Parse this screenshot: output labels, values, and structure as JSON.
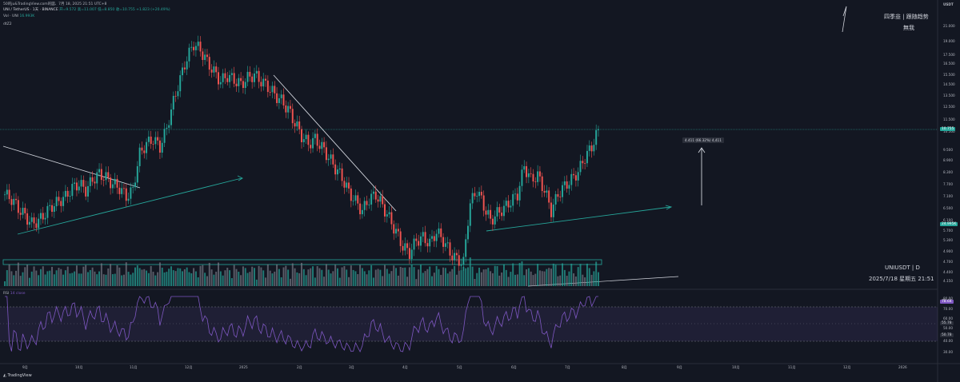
{
  "header": {
    "title_bar": "50的ju&TradingView.com的図、7月 18, 2025 21:51 UTC+8",
    "symbol_line": "UNI / TetherUS · 1天 · BINANCE",
    "ohlc": "开=9.572 高=11.007 低=8.850 收=10.755 +1.823 (+20.49%)",
    "vol_label": "Vol · UNI",
    "vol_value": "16.993K",
    "extra_label": "dtZ2"
  },
  "watermark": {
    "line1": "四季韭 | 跟随趋势",
    "line2": "無我",
    "line3": "UNIUSDT | D",
    "line4": "2025/7/18 星期五 21:51"
  },
  "measure_label": "4.411 (66.32%) 4,411",
  "currency": "USDT",
  "price_ticks": [
    "21.000",
    "19.000",
    "17.500",
    "16.500",
    "15.500",
    "14.500",
    "13.500",
    "12.500",
    "11.500",
    "10.500",
    "9.500",
    "8.900",
    "8.300",
    "7.700",
    "7.100",
    "6.500",
    "6.100",
    "5.700",
    "5.300",
    "4.900",
    "4.700",
    "4.400",
    "4.150"
  ],
  "price_tags": [
    {
      "label": "10.755",
      "color": "#26a69a"
    },
    {
      "label": "24.995K",
      "color": "#26a69a"
    }
  ],
  "rsi": {
    "label": "RSI",
    "params": "14 close",
    "value_tag": "78.64",
    "ticks": [
      "80.00",
      "70.00",
      "60.00",
      "50.00",
      "40.00",
      "30.00"
    ],
    "tags": [
      "55.78",
      "50.78"
    ]
  },
  "time_labels": [
    "9月",
    "10月",
    "11月",
    "12月",
    "2025",
    "2月",
    "3月",
    "4月",
    "5月",
    "6月",
    "7月",
    "8月",
    "9月",
    "10月",
    "11月",
    "12月",
    "2026"
  ],
  "logo": "TradingView",
  "colors": {
    "up": "#26a69a",
    "down": "#ef5350",
    "bg": "#131722",
    "rsi": "#7e57c2"
  },
  "chart_data": {
    "type": "candlestick",
    "symbol": "UNIUSDT",
    "interval": "D",
    "price_scale": "log",
    "closes": [
      7.1,
      6.9,
      6.5,
      6.2,
      5.9,
      6.0,
      6.3,
      6.6,
      6.8,
      7.0,
      7.4,
      7.6,
      7.3,
      7.8,
      8.1,
      7.9,
      7.6,
      7.4,
      7.0,
      7.3,
      9.2,
      9.8,
      10.1,
      9.6,
      10.8,
      12.8,
      14.8,
      16.9,
      18.5,
      17.8,
      16.5,
      15.5,
      14.6,
      15.1,
      14.7,
      14.3,
      14.9,
      15.2,
      14.6,
      14.1,
      13.4,
      12.9,
      12.2,
      11.2,
      10.3,
      9.8,
      10.1,
      9.6,
      9.0,
      8.4,
      7.9,
      7.2,
      6.8,
      6.4,
      6.9,
      7.1,
      6.6,
      6.1,
      5.6,
      5.1,
      4.9,
      5.3,
      5.4,
      5.2,
      5.6,
      5.3,
      4.9,
      4.7,
      4.6,
      6.7,
      7.3,
      6.6,
      6.0,
      6.3,
      6.5,
      6.8,
      7.1,
      8.5,
      7.8,
      8.0,
      7.3,
      6.4,
      7.1,
      7.5,
      7.8,
      8.2,
      9.0,
      9.6,
      10.755
    ],
    "rsi_range": [
      20,
      80
    ]
  }
}
